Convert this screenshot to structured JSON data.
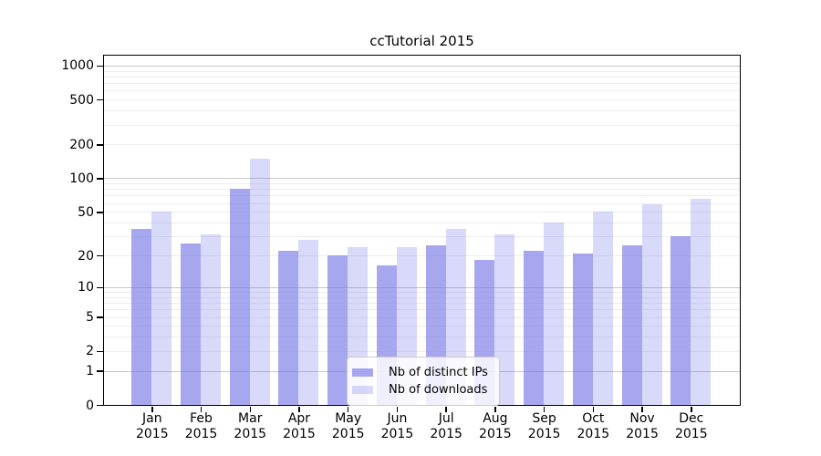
{
  "chart_data": {
    "type": "bar",
    "title": "ccTutorial 2015",
    "categories": [
      "Jan",
      "Feb",
      "Mar",
      "Apr",
      "May",
      "Jun",
      "Jul",
      "Aug",
      "Sep",
      "Oct",
      "Nov",
      "Dec"
    ],
    "x_year_line": "2015",
    "series": [
      {
        "name": "Nb of distinct IPs",
        "color": "#7878e8",
        "alpha": 0.65,
        "rendered_color": "#a7a7f0",
        "values": [
          35,
          26,
          80,
          22,
          20,
          16,
          25,
          18,
          22,
          21,
          25,
          30
        ]
      },
      {
        "name": "Nb of downloads",
        "color": "#7878e8",
        "alpha": 0.28,
        "rendered_color": "#d9d9f9",
        "values": [
          50,
          31,
          150,
          28,
          24,
          24,
          35,
          31,
          40,
          50,
          58,
          65
        ]
      }
    ],
    "yscale": "log1p",
    "ylim": [
      0,
      1230
    ],
    "yticks": [
      0,
      1,
      2,
      5,
      10,
      20,
      50,
      100,
      200,
      500,
      1000
    ],
    "grid": {
      "major_at": [
        1,
        10,
        100,
        1000
      ],
      "minor_decades": [
        1,
        10,
        100
      ],
      "major_color": "#c6c6c6",
      "minor_color": "#ededed"
    },
    "legend": {
      "position": "lower center",
      "border_color": "#cccccc"
    }
  }
}
